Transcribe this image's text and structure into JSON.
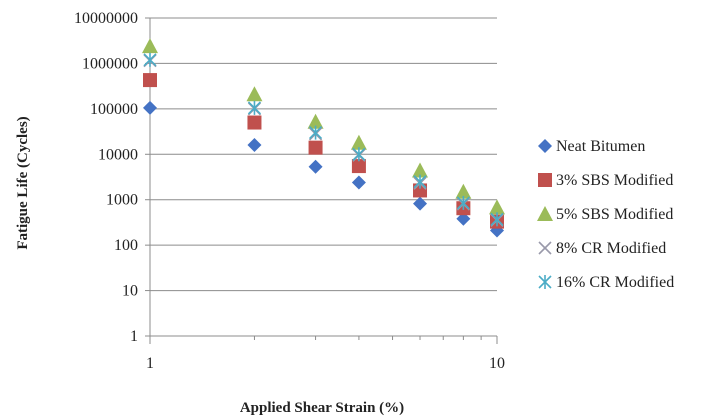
{
  "chart_data": {
    "type": "scatter",
    "title": "",
    "xlabel": "Applied Shear Strain (%)",
    "ylabel": "Fatigue Life (Cycles)",
    "xscale": "log",
    "yscale": "log",
    "xlim": [
      1,
      10
    ],
    "ylim": [
      1,
      10000000
    ],
    "xticks": [
      1,
      10
    ],
    "xtick_labels": [
      "1",
      "10"
    ],
    "yticks": [
      1,
      10,
      100,
      1000,
      10000,
      100000,
      1000000,
      10000000
    ],
    "ytick_labels": [
      "1",
      "10",
      "100",
      "1000",
      "10000",
      "100000",
      "1000000",
      "10000000"
    ],
    "grid": "horizontal major gridlines",
    "legend_position": "right",
    "series": [
      {
        "name": "Neat Bitumen",
        "marker": "diamond",
        "color": "#4472C4",
        "x": [
          1,
          2,
          3,
          4,
          6,
          8,
          10
        ],
        "y": [
          105000,
          16000,
          5300,
          2400,
          820,
          380,
          210
        ]
      },
      {
        "name": "3% SBS Modified",
        "marker": "square",
        "color": "#C0504D",
        "x": [
          1,
          2,
          3,
          4,
          6,
          8,
          10
        ],
        "y": [
          430000,
          50000,
          14000,
          5500,
          1600,
          650,
          330
        ]
      },
      {
        "name": "5% SBS Modified",
        "marker": "triangle",
        "color": "#9BBB59",
        "x": [
          1,
          2,
          3,
          4,
          6,
          8,
          10
        ],
        "y": [
          2400000,
          210000,
          52000,
          18000,
          4400,
          1500,
          680
        ]
      },
      {
        "name": "8% CR Modified",
        "marker": "x",
        "color": "#9999AA",
        "x": [
          1,
          2,
          3,
          4,
          6,
          8,
          10
        ],
        "y": [
          1150000,
          100000,
          28000,
          9500,
          2300,
          800,
          350
        ]
      },
      {
        "name": "16% CR Modified",
        "marker": "asterisk",
        "color": "#4BACC6",
        "x": [
          1,
          2,
          3,
          4,
          6,
          8,
          10
        ],
        "y": [
          1200000,
          105000,
          30000,
          10000,
          2500,
          850,
          370
        ]
      }
    ]
  }
}
